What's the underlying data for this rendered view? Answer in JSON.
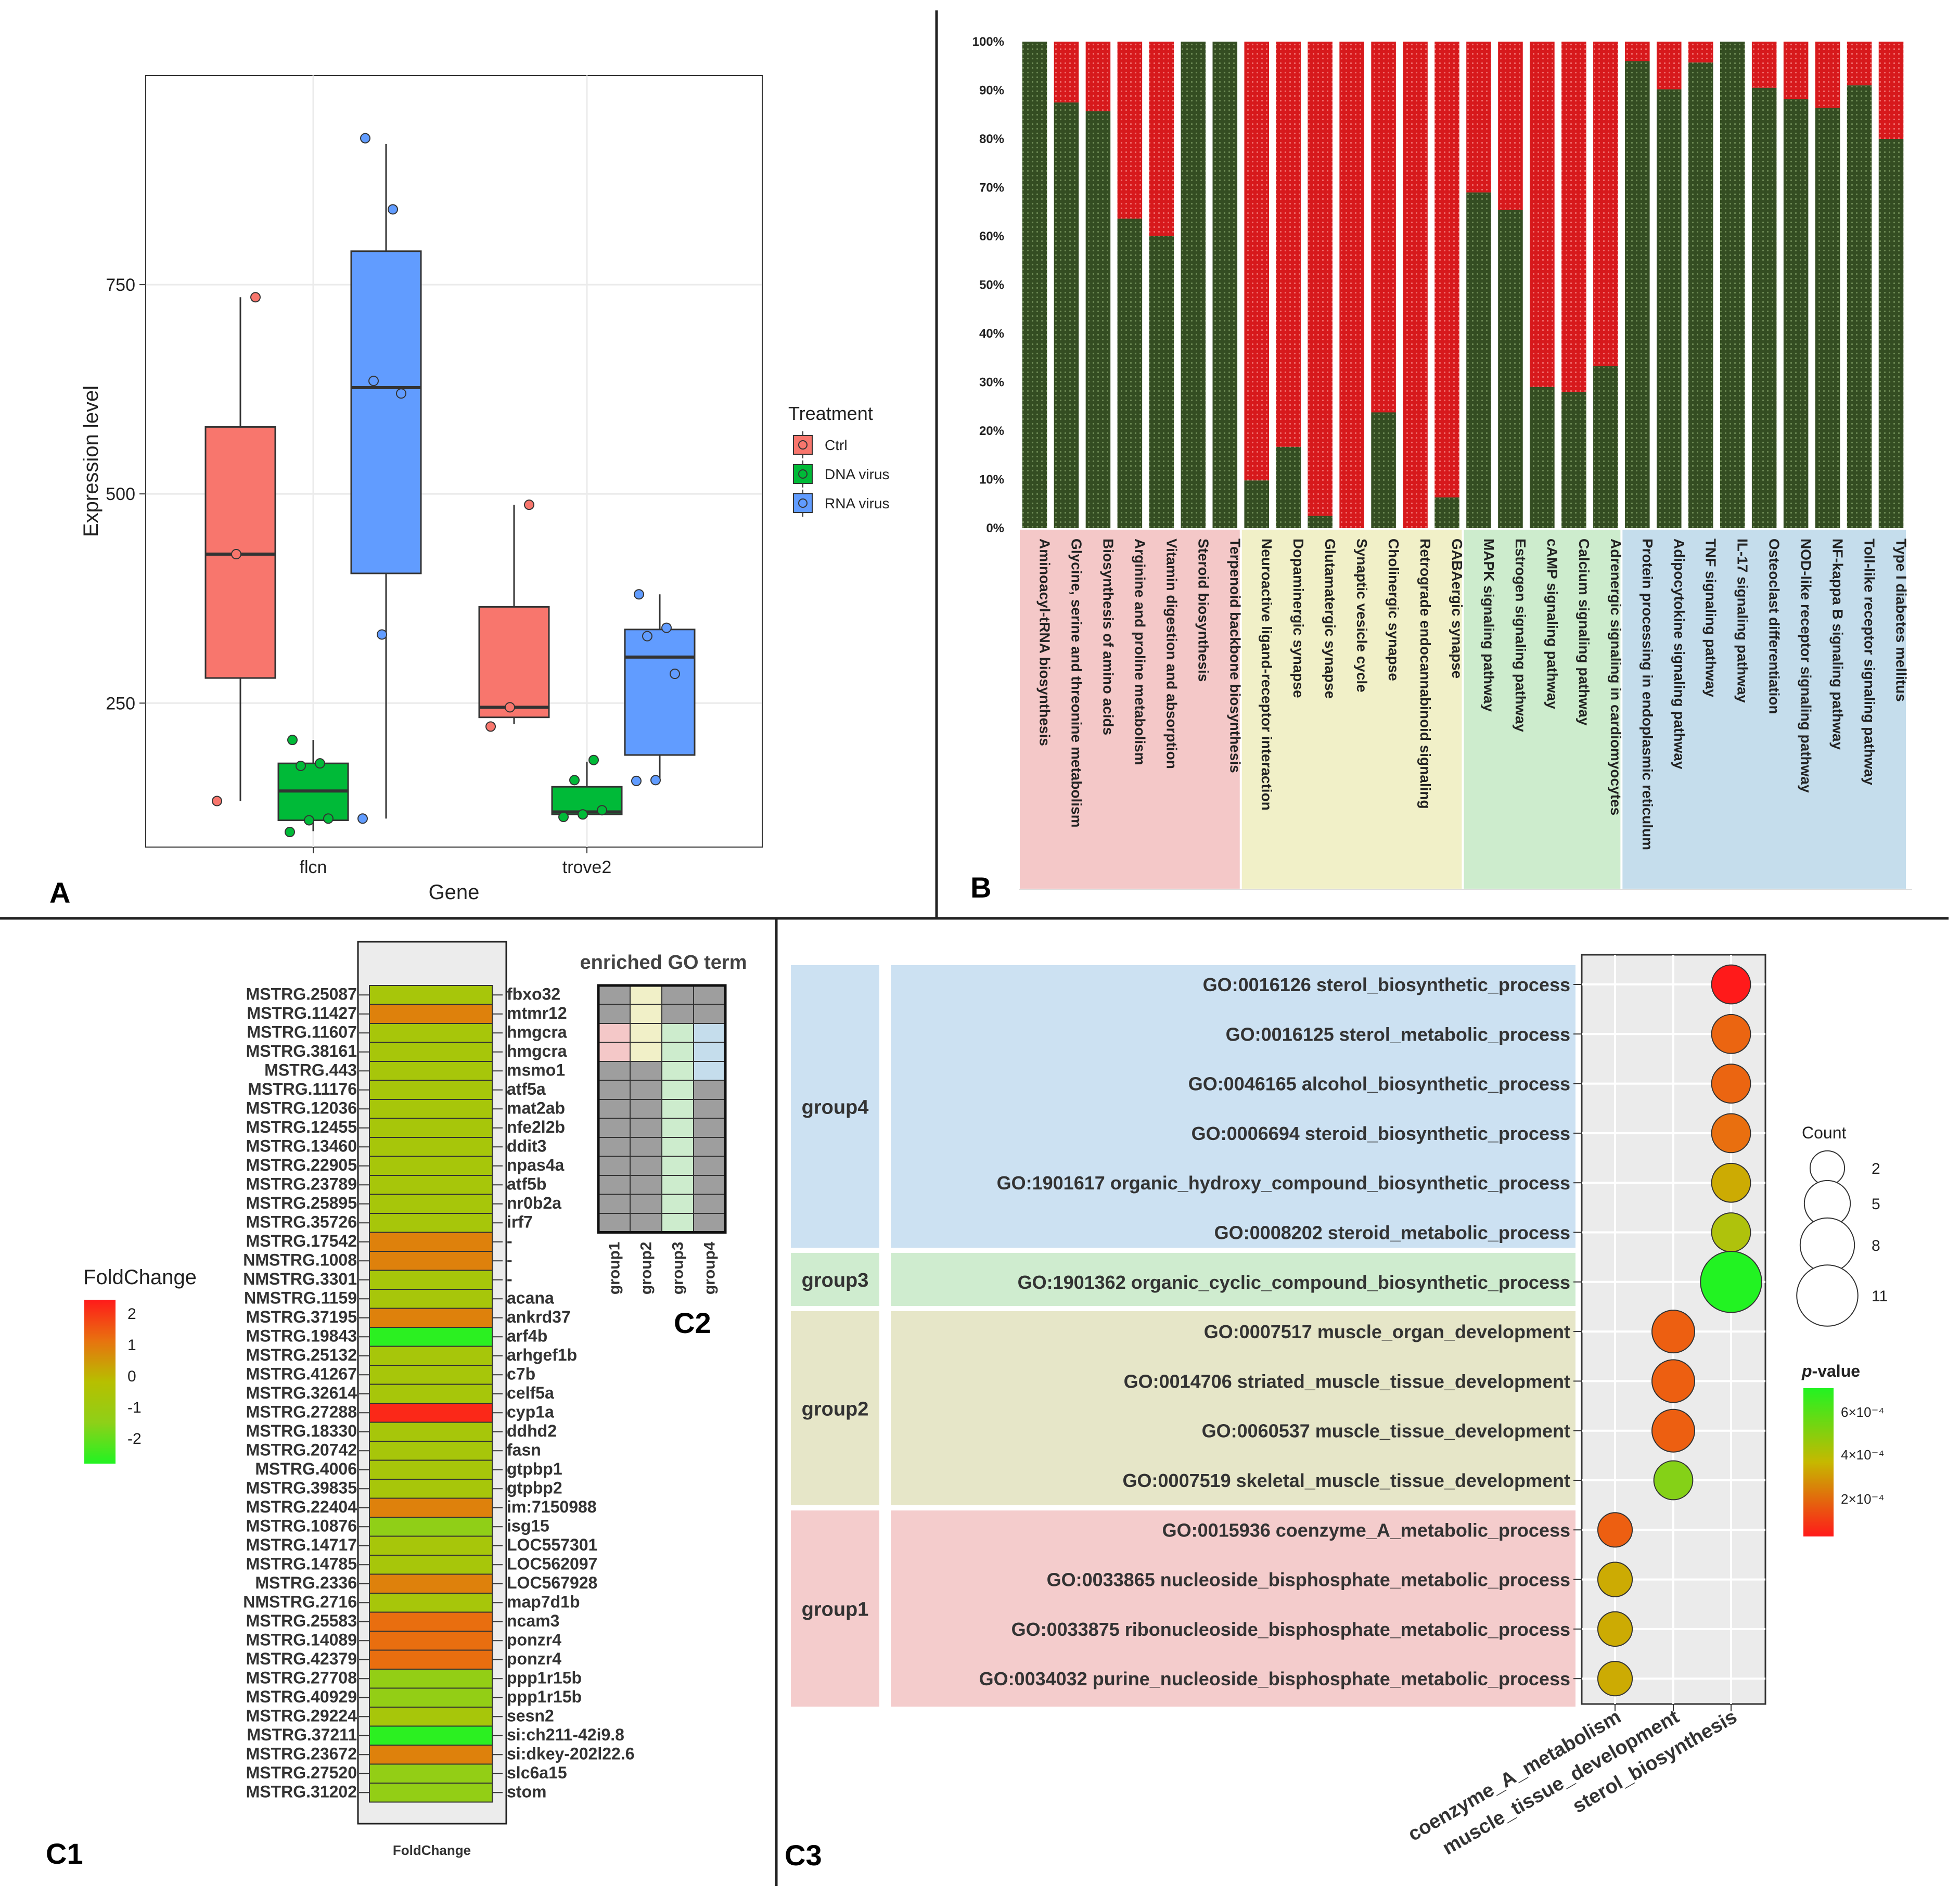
{
  "panel_labels": {
    "A": "A",
    "B": "B",
    "C1": "C1",
    "C2": "C2",
    "C3": "C3"
  },
  "colors": {
    "ctrl": "#f8766d",
    "dna": "#00ba38",
    "rna": "#619cff",
    "green_bar": "#344d22",
    "red_bar": "#d7191c",
    "cat1": "#f4c8c8",
    "cat2": "#f1f0c8",
    "cat3": "#cdeccd",
    "cat4": "#c5ddec",
    "g4_bg": "#cce1f2",
    "g3_bg": "#cfeccf",
    "g2_bg": "#e6e6c8",
    "g1_bg": "#f4cccc"
  },
  "chart_data": [
    {
      "id": "A",
      "type": "box",
      "title": "",
      "xlabel": "Gene",
      "ylabel": "Expression  level",
      "categories": [
        "flcn",
        "trove2"
      ],
      "yticks": [
        250,
        500,
        750
      ],
      "ylim": [
        78,
        1000
      ],
      "legend_title": "Treatment",
      "legend_position": "right",
      "series": [
        {
          "name": "Ctrl",
          "color": "#f8766d",
          "boxes": [
            {
              "q1": 280,
              "median": 428,
              "q3": 580,
              "low": 133,
              "high": 735,
              "points": [
                133,
                428,
                735
              ]
            },
            {
              "q1": 233,
              "median": 245,
              "q3": 365,
              "low": 225,
              "high": 487,
              "points": [
                222,
                245,
                487
              ]
            }
          ]
        },
        {
          "name": "DNA virus",
          "color": "#00ba38",
          "boxes": [
            {
              "q1": 110,
              "median": 145,
              "q3": 178,
              "low": 97,
              "high": 206,
              "points": [
                96,
                110,
                112,
                175,
                178,
                206
              ]
            },
            {
              "q1": 117,
              "median": 120,
              "q3": 150,
              "low": 114,
              "high": 180,
              "points": [
                114,
                117,
                122,
                158,
                182
              ]
            }
          ]
        },
        {
          "name": "RNA virus",
          "color": "#619cff",
          "boxes": [
            {
              "q1": 405,
              "median": 627,
              "q3": 790,
              "low": 112,
              "high": 918,
              "points": [
                112,
                332,
                620,
                635,
                840,
                925
              ]
            },
            {
              "q1": 188,
              "median": 305,
              "q3": 338,
              "low": 157,
              "high": 380,
              "points": [
                157,
                158,
                285,
                330,
                340,
                380
              ]
            }
          ]
        }
      ]
    },
    {
      "id": "B",
      "type": "stacked_bar_percent",
      "title": "",
      "yticks": [
        "0%",
        "10%",
        "20%",
        "30%",
        "40%",
        "50%",
        "60%",
        "70%",
        "80%",
        "90%",
        "100%"
      ],
      "categories": [
        "Aminoacyl-tRNA biosynthesis",
        "Glycine, serine and threonine metabolism",
        "Biosynthesis of amino acids",
        "Arginine and proline metabolism",
        "Vitamin digestion and absorption",
        "Steroid biosynthesis",
        "Terpenoid backbone biosynthesis",
        "Neuroactive ligand-receptor interaction",
        "Dopaminergic synapse",
        "Glutamatergic synapse",
        "Synaptic vesicle cycle",
        "Cholinergic synapse",
        "Retrograde endocannabinoid signaling",
        "GABAergic synapse",
        "MAPK signaling pathway",
        "Estrogen signaling pathway",
        "cAMP signaling pathway",
        "Calcium signaling pathway",
        "Adrenergic signaling in cardiomyocytes",
        "Protein processing in endoplasmic reticulum",
        "Adipocytokine signaling pathway",
        "TNF signaling pathway",
        "IL-17 signaling pathway",
        "Osteoclast differentiation",
        "NOD-like receptor signaling pathway",
        "NF-kappa B signaling pathway",
        "Toll-like receptor signaling pathway",
        "Type I diabetes mellitus"
      ],
      "green_percent": [
        100,
        87.5,
        85.7,
        63.6,
        60,
        100,
        100,
        9.8,
        16.7,
        2.5,
        0,
        23.8,
        0,
        6.3,
        69,
        65.4,
        29,
        28,
        33.3,
        96,
        90.2,
        95.7,
        100,
        90.5,
        88.2,
        86.4,
        91,
        80
      ],
      "groups": [
        {
          "start": 0,
          "end": 6,
          "color": "#f4c8c8"
        },
        {
          "start": 7,
          "end": 13,
          "color": "#f1f0c8"
        },
        {
          "start": 14,
          "end": 18,
          "color": "#cdeccd"
        },
        {
          "start": 19,
          "end": 27,
          "color": "#c5ddec"
        }
      ]
    },
    {
      "id": "C1",
      "type": "heatmap",
      "title": "",
      "xlabel": "FoldChange",
      "legend_title": "FoldChange",
      "legend_ticks": [
        "2",
        "1",
        "0",
        "-1",
        "-2"
      ],
      "rows_left": [
        "MSTRG.25087",
        "MSTRG.11427",
        "MSTRG.11607",
        "MSTRG.38161",
        "MSTRG.443",
        "MSTRG.11176",
        "MSTRG.12036",
        "MSTRG.12455",
        "MSTRG.13460",
        "MSTRG.22905",
        "MSTRG.23789",
        "MSTRG.25895",
        "MSTRG.35726",
        "MSTRG.17542",
        "NMSTRG.1008",
        "NMSTRG.3301",
        "NMSTRG.1159",
        "MSTRG.37195",
        "MSTRG.19843",
        "MSTRG.25132",
        "MSTRG.41267",
        "MSTRG.32614",
        "MSTRG.27288",
        "MSTRG.18330",
        "MSTRG.20742",
        "MSTRG.4006",
        "MSTRG.39835",
        "MSTRG.22404",
        "MSTRG.10876",
        "MSTRG.14717",
        "MSTRG.14785",
        "MSTRG.2336",
        "NMSTRG.2716",
        "MSTRG.25583",
        "MSTRG.14089",
        "MSTRG.42379",
        "MSTRG.27708",
        "MSTRG.40929",
        "MSTRG.29224",
        "MSTRG.37211",
        "MSTRG.23672",
        "MSTRG.27520",
        "MSTRG.31202"
      ],
      "rows_right": [
        "fbxo32",
        "mtmr12",
        "hmgcra",
        "hmgcra",
        "msmo1",
        "atf5a",
        "mat2ab",
        "nfe2l2b",
        "ddit3",
        "npas4a",
        "atf5b",
        "nr0b2a",
        "irf7",
        "-",
        "-",
        "-",
        "acana",
        "ankrd37",
        "arf4b",
        "arhgef1b",
        "c7b",
        "celf5a",
        "cyp1a",
        "ddhd2",
        "fasn",
        "gtpbp1",
        "gtpbp2",
        "im:7150988",
        "isg15",
        "LOC557301",
        "LOC562097",
        "LOC567928",
        "map7d1b",
        "ncam3",
        "ponzr4",
        "ponzr4",
        "ppp1r15b",
        "ppp1r15b",
        "sesn2",
        "si:ch211-42i9.8",
        "si:dkey-202l22.6",
        "slc6a15",
        "stom"
      ],
      "values": [
        -0.5,
        1,
        -0.5,
        -0.5,
        -0.5,
        -0.5,
        -0.5,
        -0.5,
        -0.5,
        -0.5,
        -0.5,
        -0.5,
        -0.5,
        1,
        1,
        -0.5,
        -0.5,
        1,
        -2.4,
        -0.5,
        -0.5,
        -0.5,
        2.3,
        -0.5,
        -0.5,
        -0.5,
        -0.5,
        1,
        -1.2,
        -0.5,
        -0.5,
        1,
        -0.5,
        1.3,
        1.3,
        1.3,
        -1.1,
        -1.1,
        -0.5,
        -2.4,
        1,
        -1.1,
        -1.1
      ]
    },
    {
      "id": "C2",
      "type": "heatmap",
      "title": "enriched GO term",
      "columns": [
        "group1",
        "group2",
        "group3",
        "group4"
      ],
      "cells": [
        [
          0,
          1,
          0,
          0
        ],
        [
          0,
          1,
          0,
          0
        ],
        [
          1,
          1,
          1,
          1
        ],
        [
          1,
          1,
          1,
          1
        ],
        [
          0,
          0,
          1,
          1
        ],
        [
          0,
          0,
          1,
          0
        ],
        [
          0,
          0,
          1,
          0
        ],
        [
          0,
          0,
          1,
          0
        ],
        [
          0,
          0,
          1,
          0
        ],
        [
          0,
          0,
          1,
          0
        ],
        [
          0,
          0,
          1,
          0
        ],
        [
          0,
          0,
          1,
          0
        ],
        [
          0,
          0,
          1,
          0
        ]
      ]
    },
    {
      "id": "C3",
      "type": "scatter",
      "title": "",
      "x_categories": [
        "coenzyme_A_metabolism",
        "muscle_tissue_development",
        "sterol_biosynthesis"
      ],
      "size_legend_title": "Count",
      "size_legend": [
        2,
        5,
        8,
        11
      ],
      "color_legend_title": "-value",
      "color_legend_title_italic": "p",
      "color_legend_ticks": [
        "6×10⁻⁴",
        "4×10⁻⁴",
        "2×10⁻⁴"
      ],
      "groups": [
        {
          "label": "group4",
          "bg": "#cce1f2",
          "terms": [
            {
              "term": "GO:0016126 sterol_biosynthetic_process",
              "x": 2,
              "count": 3,
              "p": 2e-05
            },
            {
              "term": "GO:0016125 sterol_metabolic_process",
              "x": 2,
              "count": 3,
              "p": 0.00016
            },
            {
              "term": "GO:0046165 alcohol_biosynthetic_process",
              "x": 2,
              "count": 3,
              "p": 0.00016
            },
            {
              "term": "GO:0006694 steroid_biosynthetic_process",
              "x": 2,
              "count": 3,
              "p": 0.00018
            },
            {
              "term": "GO:1901617 organic_hydroxy_compound_biosynthetic_process",
              "x": 2,
              "count": 3,
              "p": 0.00032
            },
            {
              "term": "GO:0008202 steroid_metabolic_process",
              "x": 2,
              "count": 3,
              "p": 0.00045
            }
          ]
        },
        {
          "label": "group3",
          "bg": "#cfeccf",
          "terms": [
            {
              "term": "GO:1901362 organic_cyclic_compound_biosynthetic_process",
              "x": 2,
              "count": 11,
              "p": 0.00068
            }
          ]
        },
        {
          "label": "group2",
          "bg": "#e6e6c8",
          "terms": [
            {
              "term": "GO:0007517 muscle_organ_development",
              "x": 1,
              "count": 4,
              "p": 0.00015
            },
            {
              "term": "GO:0014706 striated_muscle_tissue_development",
              "x": 1,
              "count": 4,
              "p": 0.00015
            },
            {
              "term": "GO:0060537 muscle_tissue_development",
              "x": 1,
              "count": 4,
              "p": 0.00015
            },
            {
              "term": "GO:0007519 skeletal_muscle_tissue_development",
              "x": 1,
              "count": 3,
              "p": 0.00055
            }
          ]
        },
        {
          "label": "group1",
          "bg": "#f4cccc",
          "terms": [
            {
              "term": "GO:0015936 coenzyme_A_metabolic_process",
              "x": 0,
              "count": 2,
              "p": 0.00015
            },
            {
              "term": "GO:0033865 nucleoside_bisphosphate_metabolic_process",
              "x": 0,
              "count": 2,
              "p": 0.00032
            },
            {
              "term": "GO:0033875 ribonucleoside_bisphosphate_metabolic_process",
              "x": 0,
              "count": 2,
              "p": 0.00032
            },
            {
              "term": "GO:0034032 purine_nucleoside_bisphosphate_metabolic_process",
              "x": 0,
              "count": 2,
              "p": 0.00032
            }
          ]
        }
      ]
    }
  ]
}
